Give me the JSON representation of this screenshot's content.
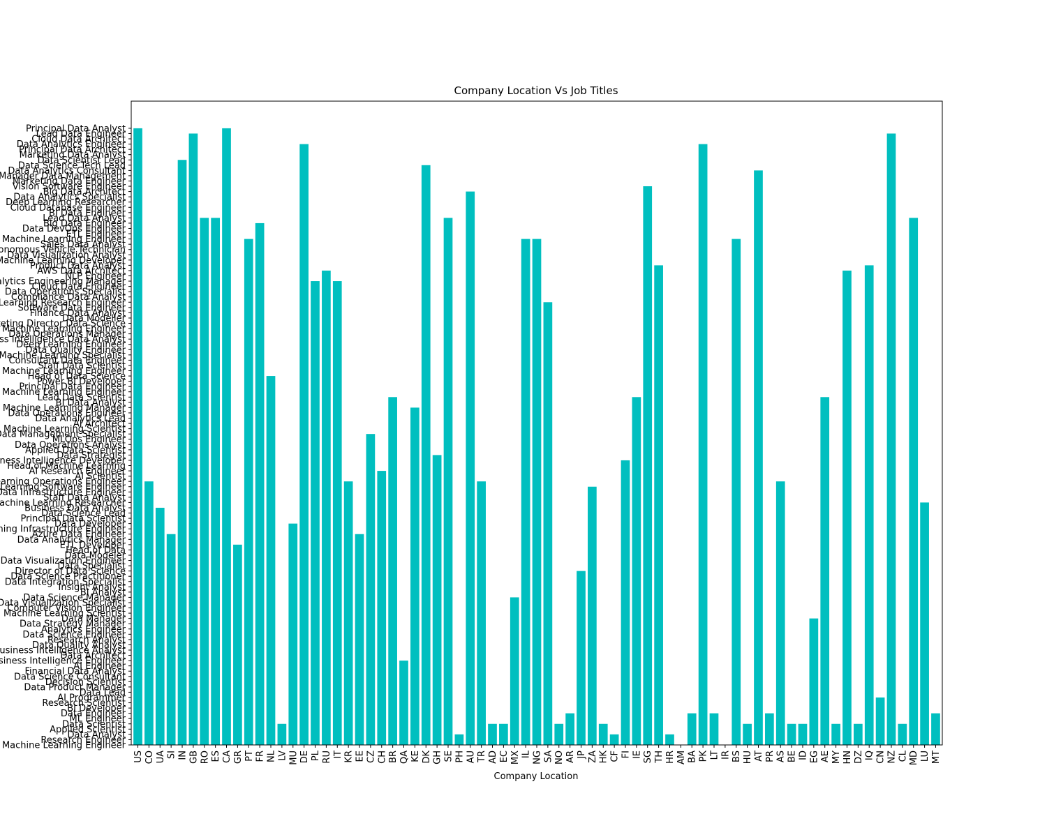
{
  "chart_data": {
    "type": "bar",
    "title": "Company Location Vs Job Titles",
    "xlabel": "Company Location",
    "ylabel": "",
    "bar_color": "#00bfbf",
    "grid": false,
    "categories": [
      "US",
      "CO",
      "UA",
      "SI",
      "IN",
      "GB",
      "RO",
      "ES",
      "CA",
      "GR",
      "PT",
      "FR",
      "NL",
      "LV",
      "MU",
      "DE",
      "PL",
      "RU",
      "IT",
      "KR",
      "EE",
      "CZ",
      "CH",
      "BR",
      "QA",
      "KE",
      "DK",
      "GH",
      "SE",
      "PH",
      "AU",
      "TR",
      "AD",
      "EC",
      "MX",
      "IL",
      "NG",
      "SA",
      "NO",
      "AR",
      "JP",
      "ZA",
      "HK",
      "CF",
      "FI",
      "IE",
      "SG",
      "TH",
      "HR",
      "AM",
      "BA",
      "PK",
      "LT",
      "IR",
      "BS",
      "HU",
      "AT",
      "PR",
      "AS",
      "BE",
      "ID",
      "EG",
      "AE",
      "MY",
      "HN",
      "DZ",
      "IQ",
      "CN",
      "NZ",
      "CL",
      "MD",
      "LU",
      "MT"
    ],
    "y_categories": [
      "Machine Learning Engineer",
      "Research Engineer",
      "Data Analyst",
      "Applied Scientist",
      "Data Scientist",
      "ML Engineer",
      "Data Engineer",
      "BI Developer",
      "Research Scientist",
      "AI Programmer",
      "Data Lead",
      "Data Product Manager",
      "Decision Scientist",
      "Data Science Consultant",
      "Financial Data Analyst",
      "AI Engineer",
      "Business Intelligence Engineer",
      "Data Architect",
      "Business Intelligence Analyst",
      "Data Quality Analyst",
      "Research Analyst",
      "Data Science Engineer",
      "Analytics Engineer",
      "Data Strategy Manager",
      "Data Manager",
      "Machine Learning Scientist",
      "Computer Vision Engineer",
      "Data Visualization Specialist",
      "Data Science Manager",
      "BI Analyst",
      "Insight Analyst",
      "Data Integration Specialist",
      "Data Science Practitioner",
      "Director of Data Science",
      "Data Specialist",
      "Data Visualization Engineer",
      "Data Modeler",
      "Head of Data",
      "ETL Developer",
      "Data Analytics Manager",
      "Azure Data Engineer",
      "Machine Learning Infrastructure Engineer",
      "Data Developer",
      "Principal Data Scientist",
      "Data Science Lead",
      "Business Data Analyst",
      "Machine Learning Researcher",
      "Staff Data Analyst",
      "Data Infrastructure Engineer",
      "Machine Learning Software Engineer",
      "Machine Learning Operations Engineer",
      "AI Scientist",
      "AI Research Engineer",
      "Head of Machine Learning",
      "Business Intelligence Developer",
      "Data Strategist",
      "Applied Data Scientist",
      "Data Operations Analyst",
      "MLOps Engineer",
      "Data Management Specialist",
      "Machine Learning Scientist",
      "AI Architect",
      "Data Analytics Lead",
      "Data Operations Engineer",
      "Machine Learning Manager",
      "BI Data Analyst",
      "Lead Data Scientist",
      "Machine Learning Engineer",
      "Principal Data Engineer",
      "Power BI Developer",
      "Head of Data Science",
      "Machine Learning Engineer",
      "Staff Data Scientist",
      "Consultant Data Engineer",
      "Machine Learning Specialist",
      "Data Quality Engineer",
      "Deep Learning Engineer",
      "Business Intelligence Data Analyst",
      "Data Operations Manager",
      "Machine Learning Engineer",
      "Marketing Director Data Science",
      "Data Modeller",
      "Finance Data Analyst",
      "Software Data Engineer",
      "Machine Learning Research Engineer",
      "Compliance Data Analyst",
      "Data Operations Specialist",
      "Cloud Data Engineer",
      "Analytics Engineering Manager",
      "NLP Engineer",
      "AWS Data Architect",
      "Product Data Analyst",
      "Machine Learning Developer",
      "Data Visualization Analyst",
      "Autonomous Vehicle Technician",
      "Sales Data Analyst",
      "Machine Learning Engineer",
      "ETL Engineer",
      "Data DevOps Engineer",
      "Big Data Engineer",
      "Lead Data Analyst",
      "BI Data Engineer",
      "Cloud Database Engineer",
      "Deep Learning Researcher",
      "Data Analytics Specialist",
      "Big Data Architect",
      "Vision Software Engineer",
      "Marketing Data Engineer",
      "Manager Data Management",
      "Data Analytics Consultant",
      "Data Science Tech Lead",
      "Data Scientist Lead",
      "Marketing Data Analyst",
      "Principal Data Architect",
      "Data Analytics Engineer",
      "Cloud Data Architect",
      "Lead Data Engineer",
      "Principal Data Analyst"
    ],
    "values": [
      "Principal Data Analyst",
      "Machine Learning Operations Engineer",
      "Business Data Analyst",
      "Azure Data Engineer",
      "Data Scientist Lead",
      "Lead Data Engineer",
      "Lead Data Analyst",
      "Lead Data Analyst",
      "Principal Data Analyst",
      "ETL Developer",
      "Machine Learning Engineer",
      "Big Data Engineer",
      "Head of Data Science",
      "Data Scientist",
      "Data Developer",
      "Data Analytics Engineer",
      "Analytics Engineering Manager",
      "AWS Data Architect",
      "Analytics Engineering Manager",
      "Machine Learning Operations Engineer",
      "Azure Data Engineer",
      "Data Management Specialist",
      "AI Research Engineer",
      "Lead Data Scientist",
      "Business Intelligence Engineer",
      "Machine Learning Manager",
      "Data Science Tech Lead",
      "Data Strategist",
      "Lead Data Analyst",
      "Data Analyst",
      "Big Data Architect",
      "Machine Learning Operations Engineer",
      "Data Scientist",
      "Data Scientist",
      "Data Science Manager",
      "Machine Learning Engineer",
      "Machine Learning Engineer",
      "Machine Learning Research Engineer",
      "Data Scientist",
      "Data Engineer",
      "Director of Data Science",
      "Machine Learning Software Engineer",
      "Data Scientist",
      "Data Analyst",
      "Business Intelligence Developer",
      "Lead Data Scientist",
      "Vision Software Engineer",
      "Product Data Analyst",
      "Data Analyst",
      "",
      "Data Engineer",
      "Data Analytics Engineer",
      "Data Engineer",
      "",
      "Machine Learning Engineer",
      "Data Scientist",
      "Data Analytics Consultant",
      "Data Engineer",
      "Machine Learning Operations Engineer",
      "Data Scientist",
      "Data Scientist",
      "Data Manager",
      "Lead Data Scientist",
      "Data Scientist",
      "AWS Data Architect",
      "Data Scientist",
      "Product Data Analyst",
      "AI Programmer",
      "Lead Data Engineer",
      "Data Scientist",
      "Lead Data Analyst",
      "Machine Learning Researcher",
      "Data Engineer"
    ]
  }
}
